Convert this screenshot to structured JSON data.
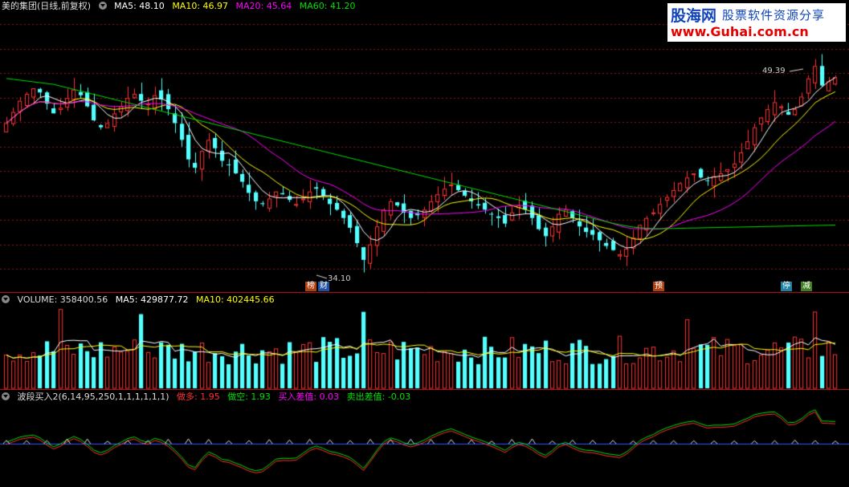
{
  "main_header": {
    "title": "美的集团(日线,前复权)",
    "ma5_label": "MA5: 48.10",
    "ma10_label": "MA10: 46.97",
    "ma20_label": "MA20: 45.64",
    "ma60_label": "MA60: 41.20"
  },
  "volume_header": {
    "volume_label": "VOLUME: 358400.56",
    "ma5_label": "MA5: 429877.72",
    "ma10_label": "MA10: 402445.66"
  },
  "indicator_header": {
    "title": "波段买入2(6,14,95,250,1,1,1,1,1,1)",
    "long_label": "做多: 1.95",
    "short_label": "做空: 1.93",
    "buy_diff_label": "买入差值: 0.03",
    "sell_diff_label": "卖出差值: -0.03"
  },
  "annotations": {
    "high_price": "49.39",
    "low_price": "34.10"
  },
  "event_tags": {
    "tag1": "榜",
    "tag2": "财",
    "tag3": "预",
    "tag4": "停",
    "tag5": "减"
  },
  "watermark": {
    "brand": "股海网",
    "slogan": "股票软件资源分享",
    "url": "www.Guhai.com.cn"
  },
  "colors": {
    "up": "#ff3232",
    "down": "#54ffff",
    "ma5": "#ffffff",
    "ma10": "#ffff00",
    "ma20": "#ff00ff",
    "ma60": "#00e000",
    "indicator_long": "#ff3232",
    "indicator_short": "#00e000",
    "indicator_base": "#3355ff"
  },
  "chart_data": {
    "type": "candlestick",
    "price_range": [
      34.1,
      49.39
    ],
    "closes": [
      44.8,
      45.6,
      46.4,
      46.9,
      47.3,
      47.0,
      46.2,
      45.5,
      45.9,
      46.6,
      47.2,
      46.8,
      46.0,
      45.0,
      44.5,
      44.8,
      45.5,
      46.0,
      46.6,
      46.9,
      46.4,
      46.2,
      46.8,
      46.5,
      45.8,
      44.8,
      43.6,
      42.2,
      41.6,
      42.8,
      43.6,
      43.0,
      42.1,
      41.8,
      41.2,
      40.6,
      39.8,
      39.2,
      39.0,
      39.4,
      39.9,
      39.7,
      39.3,
      39.0,
      39.4,
      39.9,
      40.1,
      39.6,
      39.0,
      38.6,
      38.0,
      37.3,
      36.2,
      35.0,
      36.1,
      37.4,
      38.6,
      39.2,
      38.9,
      38.4,
      38.0,
      38.2,
      38.6,
      39.2,
      39.7,
      40.1,
      40.4,
      40.0,
      39.6,
      39.2,
      38.9,
      38.6,
      38.3,
      38.0,
      37.6,
      38.4,
      38.9,
      38.6,
      38.0,
      37.2,
      36.7,
      37.4,
      38.3,
      38.6,
      38.0,
      37.4,
      37.0,
      36.8,
      36.4,
      36.0,
      35.7,
      35.4,
      35.8,
      36.6,
      37.5,
      38.0,
      38.4,
      39.0,
      39.5,
      40.0,
      40.5,
      40.9,
      41.2,
      40.9,
      40.7,
      41.0,
      41.2,
      41.5,
      41.9,
      42.7,
      43.5,
      44.5,
      45.2,
      45.8,
      46.3,
      46.0,
      45.4,
      45.8,
      46.7,
      48.0,
      48.9,
      47.5,
      47.8,
      48.1
    ]
  }
}
